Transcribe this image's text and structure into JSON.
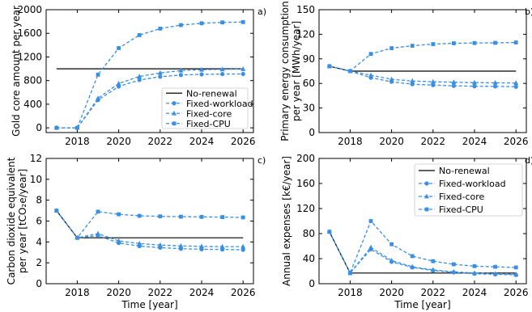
{
  "colors": {
    "reference": "#000000",
    "series": "#3b8fe0"
  },
  "chart_data": [
    {
      "type": "line",
      "panel_label": "a)",
      "ylabel": "Gold core amount per year",
      "xlabel": "",
      "x": [
        2017,
        2018,
        2019,
        2020,
        2021,
        2022,
        2023,
        2024,
        2025,
        2026
      ],
      "xlim": [
        2016.5,
        2026.5
      ],
      "ylim": [
        -80,
        2000
      ],
      "xticks": [
        2018,
        2020,
        2022,
        2024,
        2026
      ],
      "yticks": [
        0,
        400,
        800,
        1200,
        1600,
        2000
      ],
      "legend": "lower-right",
      "series": [
        {
          "name": "No-renewal",
          "style": "solid",
          "marker": "none",
          "x": [
            2017,
            2026
          ],
          "values": [
            1000,
            1000
          ]
        },
        {
          "name": "Fixed-workload",
          "style": "dashed",
          "marker": "circle",
          "values": [
            0,
            0,
            470,
            700,
            810,
            865,
            895,
            905,
            910,
            912
          ]
        },
        {
          "name": "Fixed-core",
          "style": "dashed",
          "marker": "triangle",
          "values": [
            0,
            0,
            500,
            750,
            870,
            930,
            970,
            985,
            990,
            995
          ]
        },
        {
          "name": "Fixed-CPU",
          "style": "dashed",
          "marker": "square",
          "values": [
            0,
            0,
            900,
            1350,
            1570,
            1680,
            1740,
            1770,
            1785,
            1790
          ]
        }
      ]
    },
    {
      "type": "line",
      "panel_label": "b)",
      "ylabel": "Primary energy consumption per year [MWh/year]",
      "xlabel": "",
      "x": [
        2017,
        2018,
        2019,
        2020,
        2021,
        2022,
        2023,
        2024,
        2025,
        2026
      ],
      "xlim": [
        2016.5,
        2026.5
      ],
      "ylim": [
        0,
        150
      ],
      "xticks": [
        2018,
        2020,
        2022,
        2024,
        2026
      ],
      "yticks": [
        0,
        30,
        60,
        90,
        120,
        150
      ],
      "legend": "",
      "series": [
        {
          "name": "No-renewal",
          "style": "solid",
          "marker": "none",
          "x": [
            2017,
            2018,
            2026
          ],
          "values": [
            81,
            75,
            75
          ]
        },
        {
          "name": "Fixed-workload",
          "style": "dashed",
          "marker": "circle",
          "values": [
            81,
            75,
            67,
            62,
            59,
            58,
            57,
            56.5,
            56.3,
            56
          ]
        },
        {
          "name": "Fixed-core",
          "style": "dashed",
          "marker": "triangle",
          "values": [
            81,
            75,
            70,
            65,
            63,
            62,
            61.5,
            61,
            60.8,
            60.5
          ]
        },
        {
          "name": "Fixed-CPU",
          "style": "dashed",
          "marker": "square",
          "values": [
            81,
            75,
            96,
            103,
            106,
            108,
            109,
            109.3,
            109.5,
            110
          ]
        }
      ]
    },
    {
      "type": "line",
      "panel_label": "c)",
      "ylabel": "Carbon dioxide equivalent per year [tCO₂e/year]",
      "xlabel": "Time [year]",
      "x": [
        2017,
        2018,
        2019,
        2020,
        2021,
        2022,
        2023,
        2024,
        2025,
        2026
      ],
      "xlim": [
        2016.5,
        2026.5
      ],
      "ylim": [
        0,
        12
      ],
      "xticks": [
        2018,
        2020,
        2022,
        2024,
        2026
      ],
      "yticks": [
        0,
        2,
        4,
        6,
        8,
        10,
        12
      ],
      "legend": "",
      "series": [
        {
          "name": "No-renewal",
          "style": "solid",
          "marker": "none",
          "x": [
            2017,
            2018,
            2026
          ],
          "values": [
            7.0,
            4.4,
            4.4
          ]
        },
        {
          "name": "Fixed-workload",
          "style": "dashed",
          "marker": "circle",
          "values": [
            7.0,
            4.4,
            4.6,
            3.9,
            3.6,
            3.45,
            3.35,
            3.3,
            3.28,
            3.25
          ]
        },
        {
          "name": "Fixed-core",
          "style": "dashed",
          "marker": "triangle",
          "values": [
            7.0,
            4.4,
            4.8,
            4.1,
            3.85,
            3.7,
            3.62,
            3.58,
            3.55,
            3.55
          ]
        },
        {
          "name": "Fixed-CPU",
          "style": "dashed",
          "marker": "square",
          "values": [
            7.0,
            4.4,
            6.9,
            6.65,
            6.5,
            6.45,
            6.42,
            6.4,
            6.38,
            6.35
          ]
        }
      ]
    },
    {
      "type": "line",
      "panel_label": "d)",
      "ylabel": "Annual expenses [k€/year]",
      "xlabel": "Time [year]",
      "x": [
        2017,
        2018,
        2019,
        2020,
        2021,
        2022,
        2023,
        2024,
        2025,
        2026
      ],
      "xlim": [
        2016.5,
        2026.5
      ],
      "ylim": [
        0,
        200
      ],
      "xticks": [
        2018,
        2020,
        2022,
        2024,
        2026
      ],
      "yticks": [
        0,
        40,
        80,
        120,
        160,
        200
      ],
      "legend": "upper-right",
      "series": [
        {
          "name": "No-renewal",
          "style": "solid",
          "marker": "none",
          "x": [
            2017,
            2018,
            2026
          ],
          "values": [
            83,
            17,
            17
          ]
        },
        {
          "name": "Fixed-workload",
          "style": "dashed",
          "marker": "circle",
          "values": [
            83,
            17,
            55,
            35,
            26,
            21,
            18,
            16,
            15,
            14
          ]
        },
        {
          "name": "Fixed-core",
          "style": "dashed",
          "marker": "triangle",
          "values": [
            83,
            17,
            58,
            37,
            27,
            22,
            19,
            17,
            16,
            15
          ]
        },
        {
          "name": "Fixed-CPU",
          "style": "dashed",
          "marker": "square",
          "values": [
            83,
            17,
            100,
            63,
            44,
            36,
            31,
            28,
            27,
            26
          ]
        }
      ]
    }
  ]
}
